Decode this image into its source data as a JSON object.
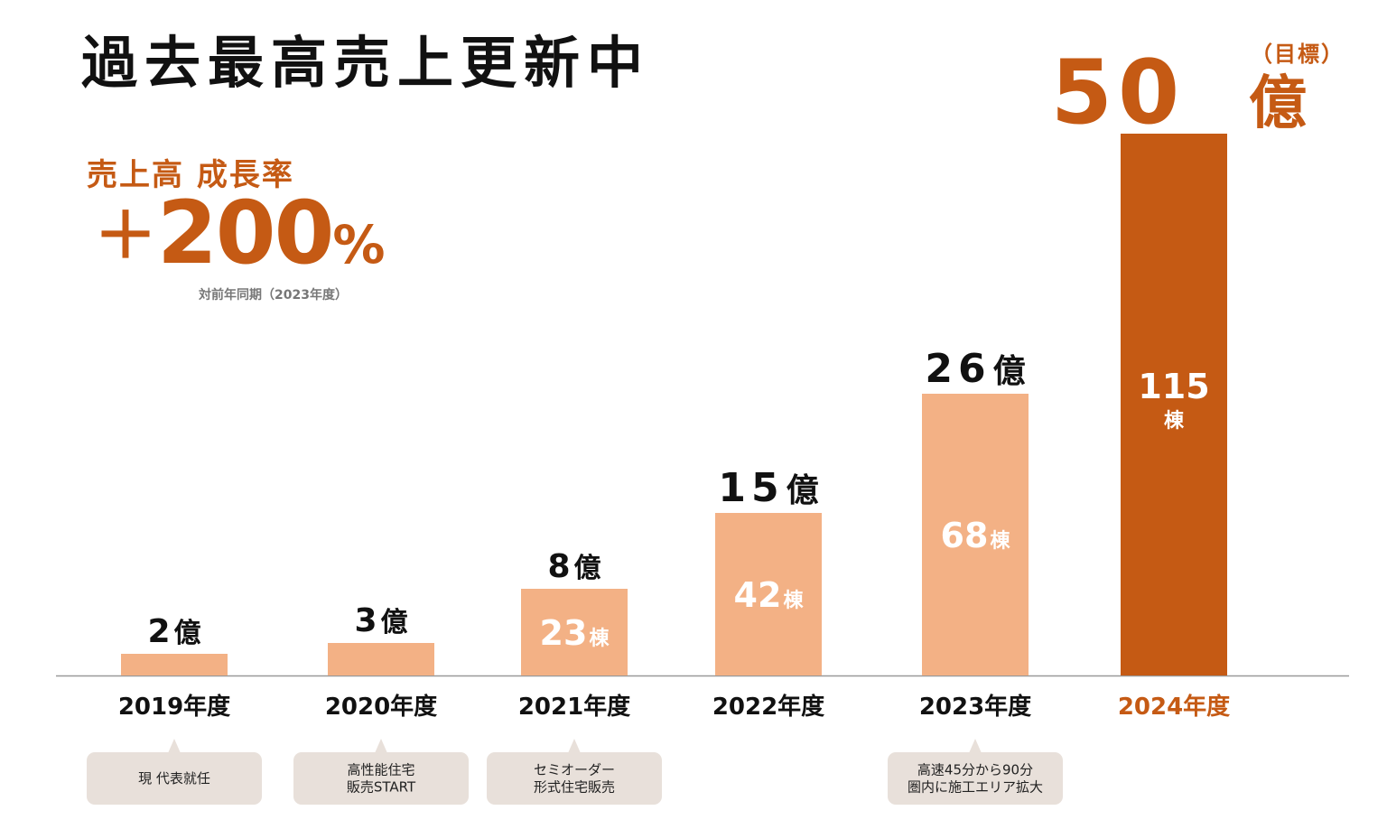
{
  "headline": {
    "title": "過去最高売上更新中",
    "growth_label": "売上高 成長率",
    "growth_plus": "＋",
    "growth_number": "200",
    "growth_unit": "%",
    "growth_note": "対前年同期（2023年度）"
  },
  "chart_data": {
    "type": "bar",
    "categories": [
      "2019年度",
      "2020年度",
      "2021年度",
      "2022年度",
      "2023年度",
      "2024年度"
    ],
    "values": [
      2,
      3,
      8,
      15,
      26,
      50
    ],
    "value_unit": "億",
    "units_built": [
      null,
      null,
      23,
      42,
      68,
      115
    ],
    "units_built_unit": "棟",
    "target_category": "2024年度",
    "target_label": "（目標）",
    "annotations": [
      {
        "category": "2019年度",
        "lines": [
          "現 代表就任"
        ]
      },
      {
        "category": "2020年度",
        "lines": [
          "高性能住宅",
          "販売START"
        ]
      },
      {
        "category": "2021年度",
        "lines": [
          "セミオーダー",
          "形式住宅販売"
        ]
      },
      {
        "category": "2023年度",
        "lines": [
          "高速45分から90分",
          "圏内に施工エリア拡大"
        ]
      }
    ],
    "ylim": [
      0,
      50
    ],
    "colors": {
      "bar": "#f3b185",
      "target_bar": "#c55a14",
      "annotation_bg": "#e8e0da",
      "axis": "#999999"
    }
  }
}
